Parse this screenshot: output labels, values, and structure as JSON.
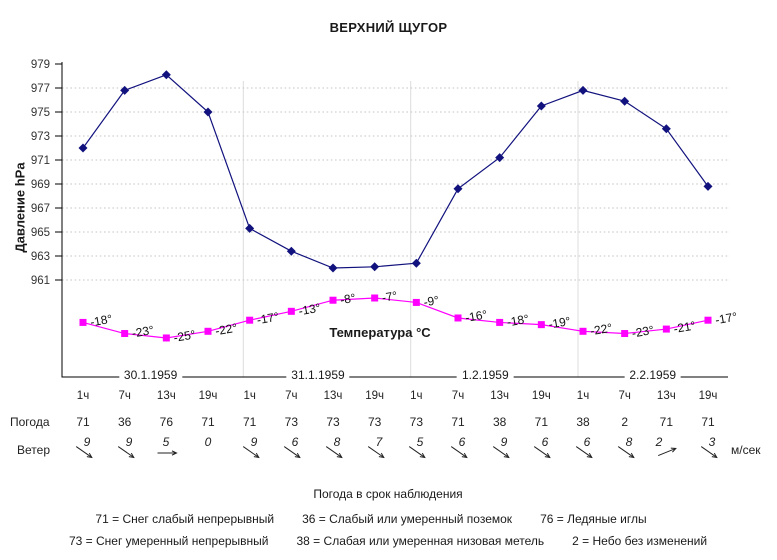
{
  "chart_data": {
    "type": "line",
    "title": "ВЕРХНИЙ ЩУГОР",
    "dates": [
      "30.1.1959",
      "31.1.1959",
      "1.2.1959",
      "2.2.1959"
    ],
    "categories": [
      "1ч",
      "7ч",
      "13ч",
      "19ч",
      "1ч",
      "7ч",
      "13ч",
      "19ч",
      "1ч",
      "7ч",
      "13ч",
      "19ч",
      "1ч",
      "7ч",
      "13ч",
      "19ч"
    ],
    "pressure_axis": {
      "label": "Давление hPa",
      "ticks": [
        979,
        977,
        975,
        973,
        971,
        969,
        967,
        965,
        963,
        961
      ],
      "ylim": [
        961,
        979
      ]
    },
    "temperature_axis_label": "Температура °C",
    "grid": "horizontal-dotted",
    "legend_position": "none",
    "series": [
      {
        "name": "Давление hPa",
        "marker": "diamond",
        "color": "#12127e",
        "values": [
          972.0,
          976.8,
          978.1,
          975.0,
          965.3,
          963.4,
          962.0,
          962.1,
          962.4,
          968.6,
          971.2,
          975.5,
          976.8,
          975.9,
          973.6,
          968.8
        ]
      },
      {
        "name": "Температура °C",
        "marker": "square",
        "color": "#ff00ff",
        "values": [
          -18,
          -23,
          -25,
          -22,
          -17,
          -13,
          -8,
          -7,
          -9,
          -16,
          -18,
          -19,
          -22,
          -23,
          -21,
          -17
        ],
        "point_labels": [
          "-18°",
          "-23°",
          "-25°",
          "-22°",
          "-17°",
          "-13°",
          "-8°",
          "-7°",
          "-9°",
          "-16°",
          "-18°",
          "-19°",
          "-22°",
          "-23°",
          "-21°",
          "-17°"
        ]
      }
    ]
  },
  "weather": {
    "label": "Погода",
    "codes": [
      "71",
      "36",
      "76",
      "71",
      "71",
      "73",
      "73",
      "73",
      "73",
      "71",
      "38",
      "71",
      "38",
      "2",
      "71",
      "71"
    ]
  },
  "wind": {
    "label": "Ветер",
    "unit": "м/сек",
    "speeds": [
      "9",
      "9",
      "5",
      "0",
      "9",
      "6",
      "8",
      "7",
      "5",
      "6",
      "9",
      "6",
      "6",
      "8",
      "2",
      "3"
    ],
    "angles_deg": [
      35,
      35,
      0,
      null,
      35,
      35,
      35,
      35,
      35,
      35,
      35,
      35,
      35,
      35,
      -22,
      35
    ]
  },
  "legend": {
    "heading": "Погода в срок наблюдения",
    "rows": [
      [
        "71 = Снег слабый непрерывный",
        "36 = Слабый или умеренный поземок",
        "76 = Ледяные иглы"
      ],
      [
        "73 = Снег умеренный непрерывный",
        "38 = Слабая или умеренная низовая метель",
        "2 = Небо без изменений"
      ]
    ]
  }
}
